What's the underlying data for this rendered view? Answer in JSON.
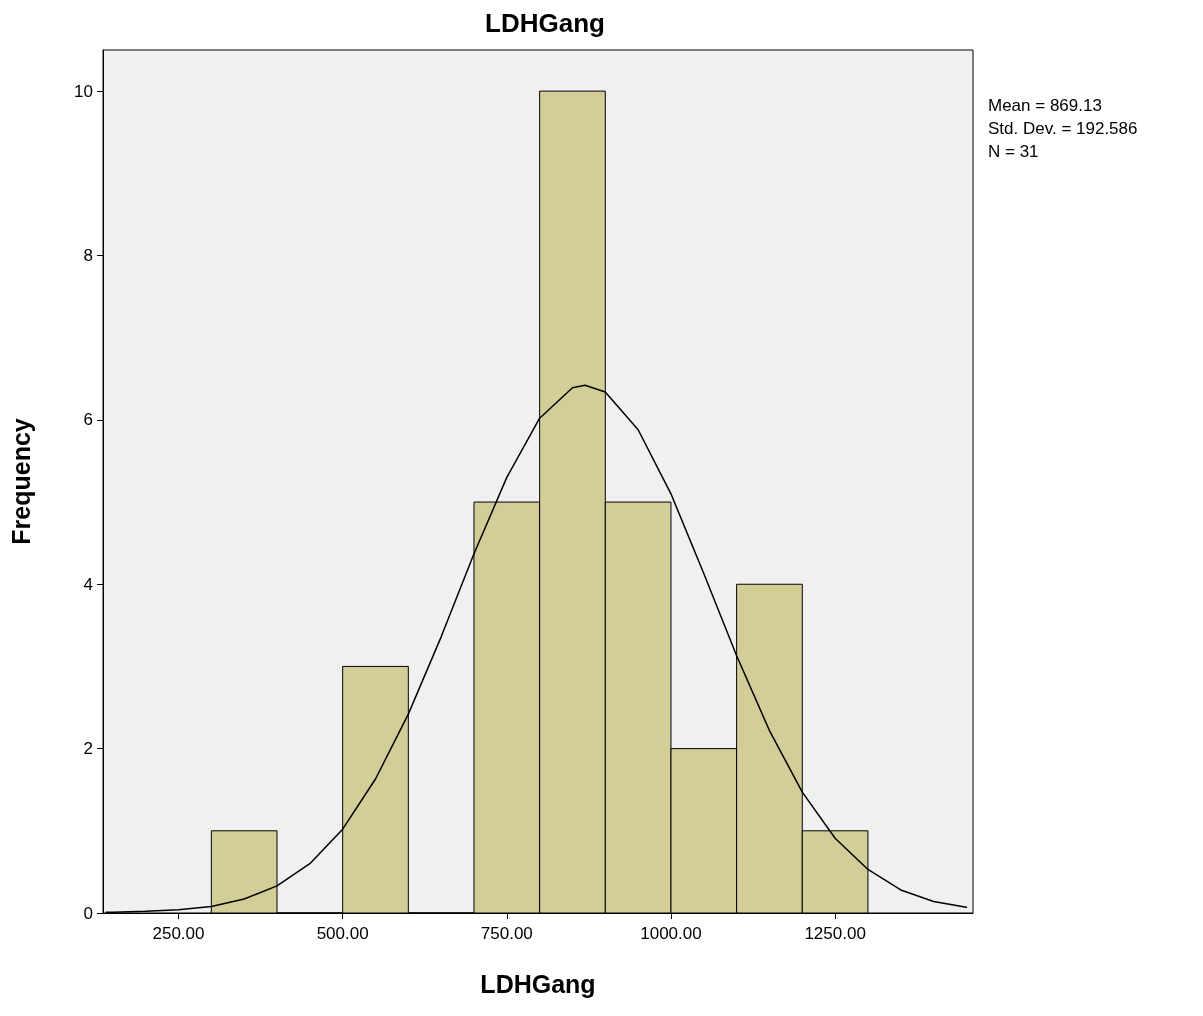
{
  "chart_data": {
    "type": "histogram",
    "title": "LDHGang",
    "xlabel": "LDHGang",
    "ylabel": "Frequency",
    "bins": [
      300,
      400,
      500,
      600,
      700,
      800,
      900,
      1000,
      1100,
      1200,
      1300
    ],
    "series": [
      {
        "color": "#d3ce97",
        "values": [
          1,
          0,
          3,
          0,
          5,
          10,
          5,
          2,
          4,
          1
        ]
      },
      {
        "type": "line",
        "color": "#000000",
        "marker": "none",
        "line_style": "solid",
        "x": [
          140,
          150,
          200,
          250,
          300,
          350,
          400,
          450,
          500,
          550,
          600,
          650,
          700,
          750,
          800,
          850,
          869.13,
          900,
          950,
          1000,
          1050,
          1100,
          1150,
          1200,
          1250,
          1300,
          1350,
          1400,
          1450
        ],
        "values": [
          0.01,
          0.01,
          0.02,
          0.04,
          0.08,
          0.17,
          0.33,
          0.6,
          1.02,
          1.63,
          2.42,
          3.36,
          4.37,
          5.3,
          6.02,
          6.39,
          6.42,
          6.34,
          5.88,
          5.1,
          4.13,
          3.13,
          2.22,
          1.47,
          0.91,
          0.53,
          0.28,
          0.14,
          0.07
        ]
      }
    ],
    "xlim": [
      135,
      1460
    ],
    "xticks": [
      {
        "value": 250,
        "label": "250.00"
      },
      {
        "value": 500,
        "label": "500.00"
      },
      {
        "value": 750,
        "label": "750.00"
      },
      {
        "value": 1000,
        "label": "1000.00"
      },
      {
        "value": 1250,
        "label": "1250.00"
      }
    ],
    "ylim": [
      0,
      10.5
    ],
    "yticks": [
      0,
      2,
      4,
      6,
      8,
      10
    ],
    "grid": false,
    "annotations": [
      "Mean = 869.13",
      "Std. Dev. = 192.586",
      "N = 31"
    ]
  }
}
